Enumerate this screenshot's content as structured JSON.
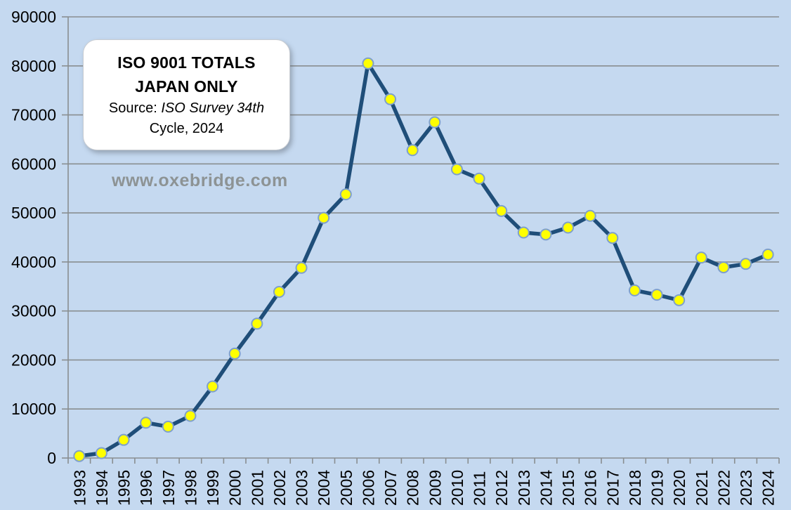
{
  "watermark": "www.oxebridge.com",
  "title_box": {
    "line1": "ISO 9001 TOTALS",
    "line2": "JAPAN ONLY",
    "source_prefix": "Source: ",
    "source_italic": "ISO Survey 34th",
    "source_line2": "Cycle, 2024"
  },
  "chart_data": {
    "type": "line",
    "title": "ISO 9001 TOTALS JAPAN ONLY",
    "subtitle": "Source: ISO Survey 34th Cycle, 2024",
    "xlabel": "",
    "ylabel": "",
    "categories": [
      "1993",
      "1994",
      "1995",
      "1996",
      "1997",
      "1998",
      "1999",
      "2000",
      "2001",
      "2002",
      "2003",
      "2004",
      "2005",
      "2006",
      "2007",
      "2008",
      "2009",
      "2010",
      "2011",
      "2012",
      "2013",
      "2014",
      "2015",
      "2016",
      "2017",
      "2018",
      "2019",
      "2020",
      "2021",
      "2022",
      "2023",
      "2024"
    ],
    "values": [
      400,
      1000,
      3700,
      7200,
      6400,
      8600,
      14600,
      21300,
      27400,
      33900,
      38800,
      49000,
      53800,
      80500,
      73200,
      62800,
      68500,
      58900,
      57000,
      50400,
      46000,
      45600,
      47000,
      49400,
      44900,
      34200,
      33300,
      32200,
      40900,
      38900,
      39600,
      41500
    ],
    "ylim": [
      0,
      90000
    ],
    "ytick_step": 10000,
    "yticks": [
      "0",
      "10000",
      "20000",
      "30000",
      "40000",
      "50000",
      "60000",
      "70000",
      "80000",
      "90000"
    ],
    "grid": true,
    "legend": "none",
    "colors": {
      "line": "#1F4E79",
      "marker_fill": "#FFFF00",
      "marker_border": "#7FA0CC",
      "background": "#C5D9F0",
      "gridline": "#898E90",
      "tick_label": "#000000"
    }
  }
}
